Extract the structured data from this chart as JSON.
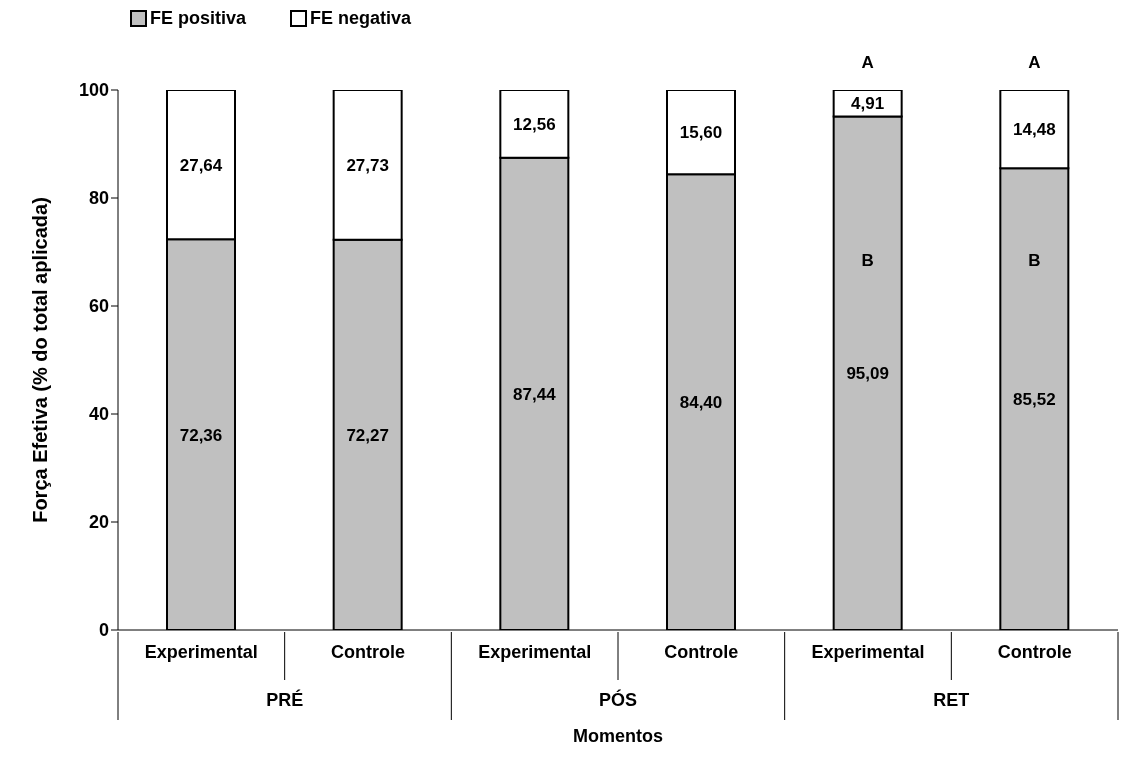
{
  "chart_data": {
    "type": "bar",
    "stacked": true,
    "xlabel": "Momentos",
    "ylabel": "Força Efetiva (% do total aplicada)",
    "categories": [
      "Experimental",
      "Controle",
      "Experimental",
      "Controle",
      "Experimental",
      "Controle"
    ],
    "series": [
      {
        "name": "FE positiva",
        "color": "#c0c0c0",
        "values": [
          72.36,
          72.27,
          87.44,
          84.4,
          95.09,
          85.52
        ],
        "value_labels": [
          "72,36",
          "72,27",
          "87,44",
          "84,40",
          "95,09",
          "85,52"
        ]
      },
      {
        "name": "FE negativa",
        "color": "#ffffff",
        "values": [
          27.64,
          27.73,
          12.56,
          15.6,
          4.91,
          14.48
        ],
        "value_labels": [
          "27,64",
          "27,73",
          "12,56",
          "15,60",
          "4,91",
          "14,48"
        ]
      }
    ],
    "annotations": [
      "PRÉ",
      "PÓS",
      "RET",
      "B",
      "B",
      "A",
      "A"
    ],
    "ylim": [
      0,
      100
    ],
    "yticks": [
      0,
      20,
      40,
      60,
      80,
      100
    ],
    "grid": false,
    "legend": "top left"
  }
}
